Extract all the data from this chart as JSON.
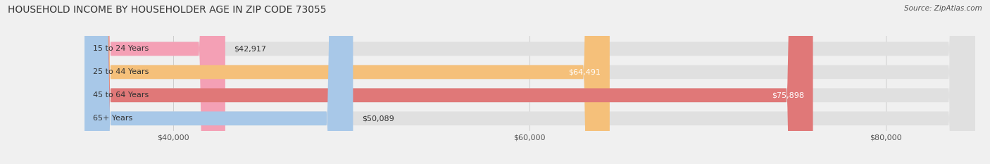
{
  "title": "HOUSEHOLD INCOME BY HOUSEHOLDER AGE IN ZIP CODE 73055",
  "source": "Source: ZipAtlas.com",
  "categories": [
    "15 to 24 Years",
    "25 to 44 Years",
    "45 to 64 Years",
    "65+ Years"
  ],
  "values": [
    42917,
    64491,
    75898,
    50089
  ],
  "bar_colors": [
    "#f4a0b5",
    "#f5c07a",
    "#e07878",
    "#a8c8e8"
  ],
  "value_inside_threshold": 55000,
  "xlim_min": 35000,
  "xlim_max": 85000,
  "xticks": [
    40000,
    60000,
    80000
  ],
  "xtick_labels": [
    "$40,000",
    "$60,000",
    "$80,000"
  ],
  "bar_height": 0.6,
  "bg_color": "#f0f0f0",
  "bar_bg_color": "#e0e0e0",
  "title_fontsize": 10,
  "label_fontsize": 8,
  "value_fontsize": 8,
  "tick_fontsize": 8,
  "source_fontsize": 7.5
}
